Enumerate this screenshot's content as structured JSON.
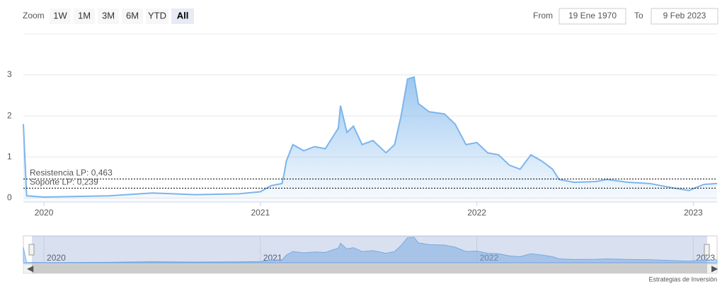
{
  "range_selector": {
    "zoom_label": "Zoom",
    "buttons": [
      "1W",
      "1M",
      "3M",
      "6M",
      "YTD",
      "All"
    ],
    "active_button": 5,
    "from_label": "From",
    "from_value": "19 Ene 1970",
    "to_label": "To",
    "to_value": "9 Feb 2023"
  },
  "chart_data": {
    "type": "area",
    "color": "#7cb5ec",
    "x": [
      2019.905,
      2019.92,
      2020.0,
      2020.3,
      2020.5,
      2020.7,
      2020.9,
      2021.0,
      2021.05,
      2021.1,
      2021.11,
      2021.12,
      2021.15,
      2021.2,
      2021.25,
      2021.3,
      2021.33,
      2021.36,
      2021.37,
      2021.4,
      2021.43,
      2021.47,
      2021.52,
      2021.58,
      2021.62,
      2021.65,
      2021.68,
      2021.71,
      2021.73,
      2021.78,
      2021.85,
      2021.9,
      2021.95,
      2022.0,
      2022.05,
      2022.1,
      2022.15,
      2022.2,
      2022.25,
      2022.3,
      2022.35,
      2022.38,
      2022.45,
      2022.55,
      2022.6,
      2022.7,
      2022.8,
      2022.9,
      2022.98,
      2023.05,
      2023.11
    ],
    "values": [
      1.8,
      0.05,
      0.02,
      0.05,
      0.12,
      0.08,
      0.1,
      0.15,
      0.3,
      0.35,
      0.6,
      0.9,
      1.3,
      1.15,
      1.25,
      1.2,
      1.45,
      1.7,
      2.25,
      1.6,
      1.75,
      1.3,
      1.4,
      1.1,
      1.3,
      2.0,
      2.9,
      2.95,
      2.3,
      2.1,
      2.05,
      1.8,
      1.3,
      1.35,
      1.1,
      1.05,
      0.8,
      0.7,
      1.05,
      0.9,
      0.7,
      0.45,
      0.38,
      0.4,
      0.45,
      0.38,
      0.35,
      0.25,
      0.18,
      0.33,
      0.35
    ],
    "xlim": [
      2019.905,
      2023.11
    ],
    "xticks": [
      2020,
      2021,
      2022,
      2023
    ],
    "ylim": [
      -0.1,
      4
    ],
    "yticks": [
      0,
      1,
      2,
      3
    ],
    "grid": true,
    "plot_lines": [
      {
        "value": 0.463,
        "label": "Resistencia LP: 0,463"
      },
      {
        "value": 0.239,
        "label": "Soporte LP: 0,239"
      }
    ]
  },
  "credits": "Estrategias de Inversión"
}
